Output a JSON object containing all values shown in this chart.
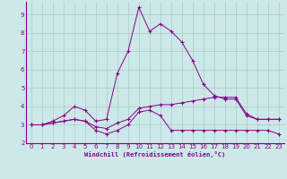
{
  "xlabel": "Windchill (Refroidissement éolien,°C)",
  "bg_color": "#cce8e8",
  "grid_color": "#aacccc",
  "line_color": "#880088",
  "xlim": [
    -0.5,
    23.5
  ],
  "ylim": [
    2.0,
    9.7
  ],
  "xticks": [
    0,
    1,
    2,
    3,
    4,
    5,
    6,
    7,
    8,
    9,
    10,
    11,
    12,
    13,
    14,
    15,
    16,
    17,
    18,
    19,
    20,
    21,
    22,
    23
  ],
  "yticks": [
    2,
    3,
    4,
    5,
    6,
    7,
    8,
    9
  ],
  "lines": [
    {
      "x": [
        0,
        1,
        2,
        3,
        4,
        5,
        6,
        7,
        8,
        9,
        10,
        11,
        12,
        13,
        14,
        15,
        16,
        17,
        18,
        19,
        20,
        21,
        22,
        23
      ],
      "y": [
        3.0,
        3.0,
        3.1,
        3.2,
        3.3,
        3.2,
        2.7,
        2.5,
        2.7,
        3.0,
        3.7,
        3.8,
        3.5,
        2.7,
        2.7,
        2.7,
        2.7,
        2.7,
        2.7,
        2.7,
        2.7,
        2.7,
        2.7,
        2.5
      ]
    },
    {
      "x": [
        0,
        1,
        2,
        3,
        4,
        5,
        6,
        7,
        8,
        9,
        10,
        11,
        12,
        13,
        14,
        15,
        16,
        17,
        18,
        19,
        20,
        21,
        22,
        23
      ],
      "y": [
        3.0,
        3.0,
        3.1,
        3.2,
        3.3,
        3.2,
        2.9,
        2.8,
        3.1,
        3.3,
        3.9,
        4.0,
        4.1,
        4.1,
        4.2,
        4.3,
        4.4,
        4.5,
        4.5,
        4.5,
        3.6,
        3.3,
        3.3,
        3.3
      ]
    },
    {
      "x": [
        0,
        1,
        2,
        3,
        4,
        5,
        6,
        7,
        8,
        9,
        10,
        11,
        12,
        13,
        14,
        15,
        16,
        17,
        18,
        19,
        20,
        21,
        22,
        23
      ],
      "y": [
        3.0,
        3.0,
        3.2,
        3.5,
        4.0,
        3.8,
        3.2,
        3.3,
        5.8,
        7.0,
        9.4,
        8.1,
        8.5,
        8.1,
        7.5,
        6.5,
        5.2,
        4.6,
        4.4,
        4.4,
        3.5,
        3.3,
        3.3,
        3.3
      ]
    }
  ]
}
